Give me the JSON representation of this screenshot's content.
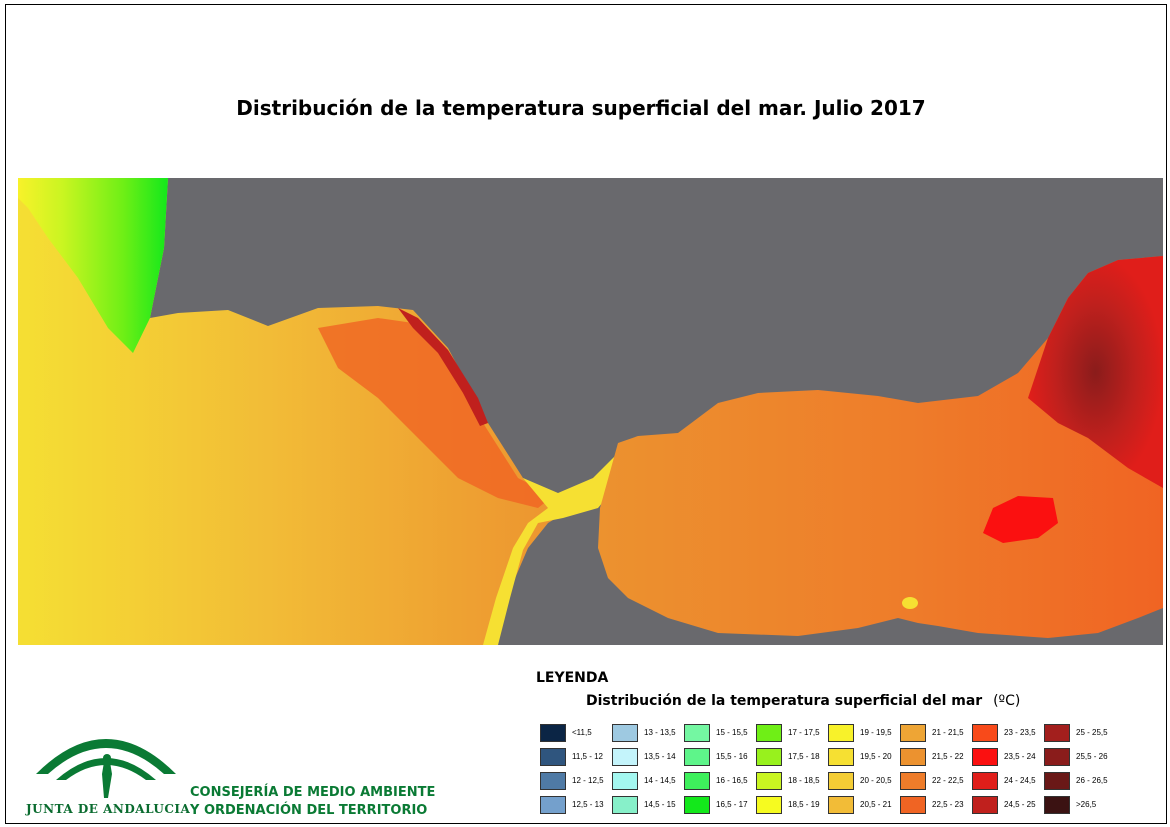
{
  "title": "Distribución de la temperatura superficial del mar. Julio 2017",
  "legend": {
    "heading": "LEYENDA",
    "subtitle": "Distribución de la temperatura superficial del mar",
    "unit": "(ºC)",
    "classes": [
      {
        "label": "<11,5",
        "color": "#0b2545"
      },
      {
        "label": "11,5 - 12",
        "color": "#2f557e"
      },
      {
        "label": "12 - 12,5",
        "color": "#4f7aa5"
      },
      {
        "label": "12,5 - 13",
        "color": "#74a0cc"
      },
      {
        "label": "13 - 13,5",
        "color": "#9ec9e1"
      },
      {
        "label": "13,5 - 14",
        "color": "#c4f4fb"
      },
      {
        "label": "14 - 14,5",
        "color": "#a4f7f0"
      },
      {
        "label": "14,5 - 15",
        "color": "#87f0c9"
      },
      {
        "label": "15 - 15,5",
        "color": "#74f7a2"
      },
      {
        "label": "15,5 - 16",
        "color": "#5ef58a"
      },
      {
        "label": "16 - 16,5",
        "color": "#3ef05c"
      },
      {
        "label": "16,5 - 17",
        "color": "#13e81b"
      },
      {
        "label": "17 - 17,5",
        "color": "#6fef16"
      },
      {
        "label": "17,5 - 18",
        "color": "#98f11d"
      },
      {
        "label": "18 - 18,5",
        "color": "#c9f521"
      },
      {
        "label": "18,5 - 19",
        "color": "#f6fb20"
      },
      {
        "label": "19 - 19,5",
        "color": "#f8f22a"
      },
      {
        "label": "19,5 - 20",
        "color": "#f6e032"
      },
      {
        "label": "20 - 20,5",
        "color": "#f4cd35"
      },
      {
        "label": "20,5 - 21",
        "color": "#f2bc37"
      },
      {
        "label": "21 - 21,5",
        "color": "#eea535"
      },
      {
        "label": "21,5 - 22",
        "color": "#ec922f"
      },
      {
        "label": "22 - 22,5",
        "color": "#ee7c2a"
      },
      {
        "label": "22,5 - 23",
        "color": "#f06423"
      },
      {
        "label": "23 - 23,5",
        "color": "#f84a1a"
      },
      {
        "label": "23,5 - 24",
        "color": "#fb1010"
      },
      {
        "label": "24 - 24,5",
        "color": "#e01e1a"
      },
      {
        "label": "24,5 - 25",
        "color": "#c0201d"
      },
      {
        "label": "25 - 25,5",
        "color": "#a31f1d"
      },
      {
        "label": "25,5 - 26",
        "color": "#8a1c1b"
      },
      {
        "label": "26 - 26,5",
        "color": "#6a1817"
      },
      {
        "label": ">26,5",
        "color": "#3b1212"
      }
    ]
  },
  "logo": {
    "text": "JUNTA DE ANDALUCIA",
    "color": "#0a7a34"
  },
  "department": {
    "line1": "CONSEJERÍA DE MEDIO AMBIENTE",
    "line2": "Y ORDENACIÓN DEL TERRITORIO"
  },
  "map": {
    "land_color": "#69696d"
  }
}
